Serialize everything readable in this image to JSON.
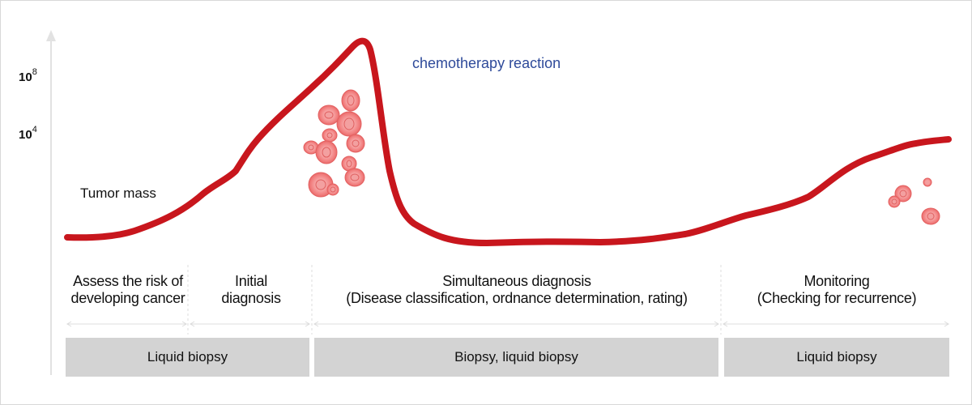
{
  "y_axis": {
    "tick_high": {
      "base": "10",
      "exp": "8"
    },
    "tick_low": {
      "base": "10",
      "exp": "4"
    }
  },
  "annotations": {
    "tumor_mass": "Tumor mass",
    "chemo": "chemotherapy reaction"
  },
  "stages": [
    {
      "line1": "Assess the risk of",
      "line2": "developing cancer"
    },
    {
      "line1": "Initial",
      "line2": "diagnosis"
    },
    {
      "line1": "Simultaneous diagnosis",
      "line2": "(Disease classification, ordnance determination, rating)"
    },
    {
      "line1": "Monitoring",
      "line2": "(Checking for recurrence)"
    }
  ],
  "methods": [
    "Liquid biopsy",
    "Biopsy, liquid biopsy",
    "Liquid biopsy"
  ],
  "colors": {
    "curve": "#c8161d",
    "cells": "#f07c7c",
    "chemo_text": "#2e4a9a",
    "bars": "#d3d3d3"
  }
}
